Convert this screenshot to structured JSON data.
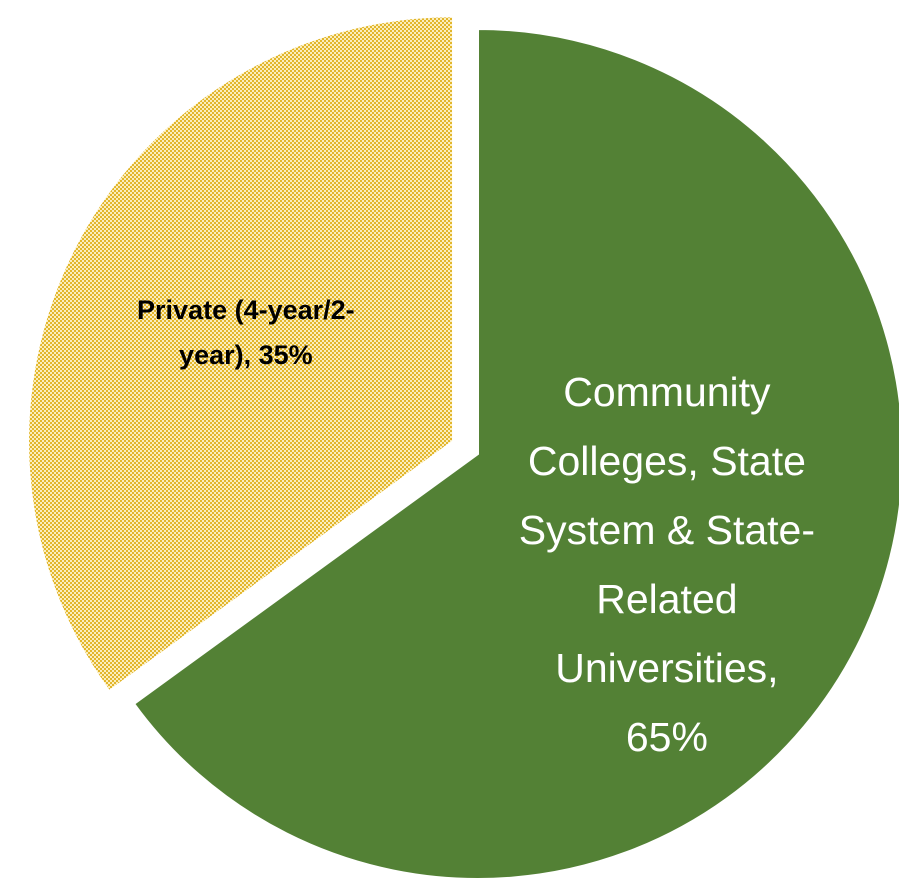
{
  "chart_data": {
    "type": "pie",
    "title": "",
    "start_angle_deg": 0,
    "direction": "clockwise",
    "slices": [
      {
        "category": "Community Colleges, State System & State-Related Universities",
        "value": 65,
        "percent_label": "65%",
        "label_lines": [
          "Community",
          "Colleges, State",
          "System & State-",
          "Related",
          "Universities,",
          "65%"
        ],
        "color": "#538135",
        "text_color": "#ffffff",
        "fill_pattern": "solid",
        "exploded": false
      },
      {
        "category": "Private (4-year/2-year)",
        "value": 35,
        "percent_label": "35%",
        "label_lines": [
          "Private (4-year/2-",
          "year), 35%"
        ],
        "color": "#e8c440",
        "text_color": "#000000",
        "fill_pattern": "checkered",
        "exploded": true
      }
    ],
    "legend": "none",
    "grid": false
  }
}
